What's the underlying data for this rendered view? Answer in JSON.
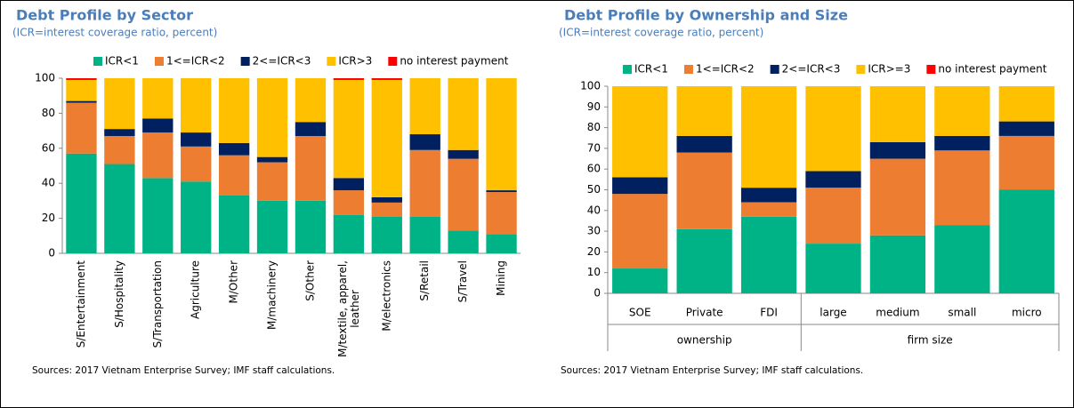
{
  "chart_data": [
    {
      "type": "stacked_bar",
      "title": "Debt Profile by Sector",
      "subtitle": "(ICR=interest coverage ratio, percent)",
      "categories": [
        "S/Entertainment",
        "S/Hospitality",
        "S/Transportation",
        "Agriculture",
        "M/Other",
        "M/machinery",
        "S/Other",
        "M/textile, apparel, leather",
        "M/electronics",
        "S/Retail",
        "S/Travel",
        "Mining"
      ],
      "series": [
        {
          "name": "ICR<1",
          "color": "#00b386",
          "values": [
            57,
            51,
            43,
            41,
            33,
            30,
            30,
            22,
            21,
            21,
            13,
            11
          ]
        },
        {
          "name": "1<=ICR<2",
          "color": "#ed7d31",
          "values": [
            29,
            16,
            26,
            20,
            23,
            22,
            37,
            14,
            8,
            38,
            41,
            24
          ]
        },
        {
          "name": "2<=ICR<3",
          "color": "#002060",
          "values": [
            1,
            4,
            8,
            8,
            7,
            3,
            8,
            7,
            3,
            9,
            5,
            1
          ]
        },
        {
          "name": "ICR>3",
          "color": "#ffc000",
          "values": [
            12,
            29,
            23,
            31,
            37,
            45,
            25,
            56,
            67,
            32,
            41,
            64
          ]
        },
        {
          "name": "no interest payment",
          "color": "#ff0000",
          "values": [
            1,
            0,
            0,
            0,
            0,
            0,
            0,
            1,
            1,
            0,
            0,
            0
          ]
        }
      ],
      "ylim": [
        0,
        100
      ],
      "yticks": [
        0,
        20,
        40,
        60,
        80,
        100
      ],
      "source": "Sources: 2017 Vietnam Enterprise Survey; IMF staff calculations."
    },
    {
      "type": "stacked_bar",
      "title": "Debt Profile by Ownership and Size",
      "subtitle": "(ICR=interest coverage ratio, percent)",
      "groups": [
        {
          "name": "ownership",
          "categories": [
            "SOE",
            "Private",
            "FDI"
          ]
        },
        {
          "name": "firm size",
          "categories": [
            "large",
            "medium",
            "small",
            "micro"
          ]
        }
      ],
      "series": [
        {
          "name": "ICR<1",
          "color": "#00b386",
          "values": [
            12,
            31,
            37,
            24,
            28,
            33,
            50
          ]
        },
        {
          "name": "1<=ICR<2",
          "color": "#ed7d31",
          "values": [
            36,
            37,
            7,
            27,
            37,
            36,
            26
          ]
        },
        {
          "name": "2<=ICR<3",
          "color": "#002060",
          "values": [
            8,
            8,
            7,
            8,
            8,
            7,
            7
          ]
        },
        {
          "name": "ICR>=3",
          "color": "#ffc000",
          "values": [
            44,
            24,
            49,
            41,
            27,
            24,
            17
          ]
        },
        {
          "name": "no interest payment",
          "color": "#ff0000",
          "values": [
            0,
            0,
            0,
            0,
            0,
            0,
            0
          ]
        }
      ],
      "ylim": [
        0,
        100
      ],
      "yticks": [
        0,
        10,
        20,
        30,
        40,
        50,
        60,
        70,
        80,
        90,
        100
      ],
      "source": "Sources: 2017 Vietnam Enterprise Survey; IMF staff calculations."
    }
  ]
}
